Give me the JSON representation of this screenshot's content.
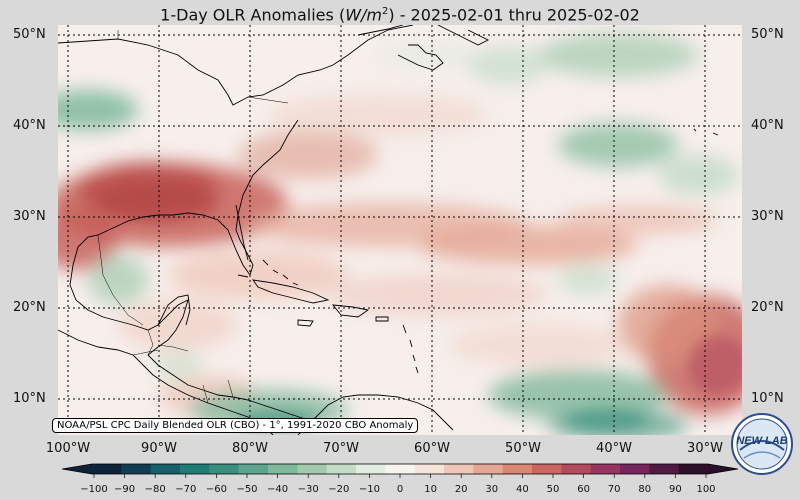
{
  "title": {
    "prefix": "1-Day OLR Anomalies (",
    "unit_base": "W/m",
    "unit_exp": "2",
    "suffix": ") - 2025-02-01 thru 2025-02-02"
  },
  "lat_labels": [
    "50°N",
    "40°N",
    "30°N",
    "20°N",
    "10°N"
  ],
  "lat_labels_right": [
    "50°N",
    "40°N",
    "30°N",
    "20°N",
    "10°N"
  ],
  "lon_labels": [
    "100°W",
    "90°W",
    "80°W",
    "70°W",
    "60°W",
    "50°W",
    "40°W",
    "30°W"
  ],
  "source_note": "NOAA/PSL CPC Daily Blended OLR (CBO) - 1°, 1991-2020 CBO Anomaly",
  "colorbar": {
    "ticks": [
      "−100",
      "−90",
      "−80",
      "−70",
      "−60",
      "−50",
      "−40",
      "−30",
      "−20",
      "−10",
      "0",
      "10",
      "20",
      "30",
      "40",
      "50",
      "60",
      "70",
      "80",
      "90",
      "100"
    ],
    "min": -100,
    "max": 100,
    "colors": [
      "#0c2339",
      "#123e55",
      "#17606b",
      "#1f7b74",
      "#3a907f",
      "#5da38d",
      "#7fb89b",
      "#a2cbae",
      "#c4ddc7",
      "#e3eee3",
      "#f7f3ef",
      "#f6e4dc",
      "#eec7b9",
      "#e4a795",
      "#d98674",
      "#c96661",
      "#b24b5d",
      "#963562",
      "#76255d",
      "#501a45",
      "#2c0f28"
    ]
  },
  "logo": {
    "text": "NEW LAB"
  },
  "colors": {
    "land_outline": "#000000",
    "grid": "#000000",
    "neutral": "#f7efec",
    "positive": "#c8554f",
    "negative": "#4d9a6f"
  }
}
